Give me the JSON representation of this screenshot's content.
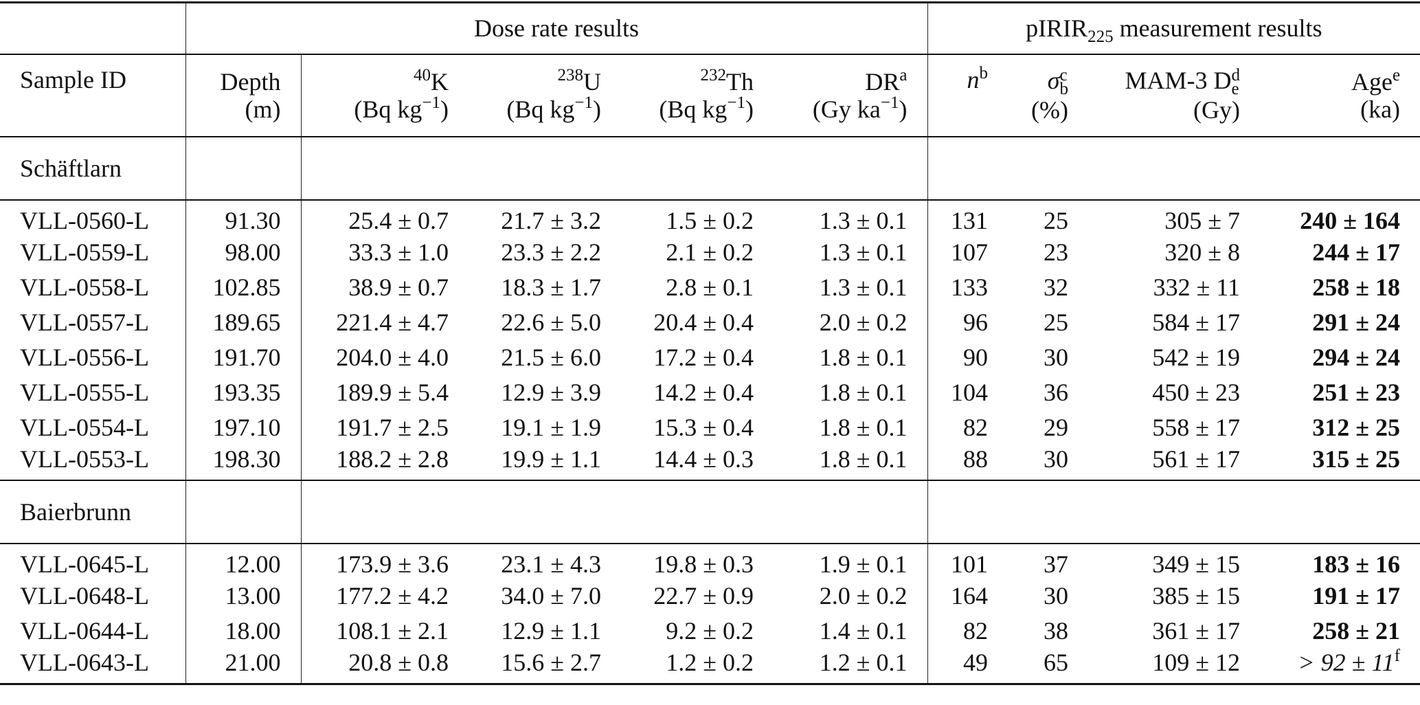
{
  "header": {
    "group_dose": "Dose rate results",
    "group_pirir_prefix": "pIRIR",
    "group_pirir_sub": "225",
    "group_pirir_suffix": " measurement results",
    "sample_id": "Sample ID",
    "depth": "Depth",
    "depth_unit": "(m)",
    "k_sup": "40",
    "k": "K",
    "k_unit": "(Bq kg",
    "k_unit_sup": "−1",
    "k_unit_end": ")",
    "u_sup": "238",
    "u": "U",
    "u_unit": "(Bq kg",
    "u_unit_sup": "−1",
    "u_unit_end": ")",
    "th_sup": "232",
    "th": "Th",
    "th_unit": "(Bq kg",
    "th_unit_sup": "−1",
    "th_unit_end": ")",
    "dr": "DR",
    "dr_sup": "a",
    "dr_unit": "(Gy ka",
    "dr_unit_sup": "−1",
    "dr_unit_end": ")",
    "n": "n",
    "n_sup": "b",
    "sigma": "σ",
    "sigma_sub": "b",
    "sigma_sup": "c",
    "sigma_unit": "(%)",
    "mam": "MAM-3 D",
    "mam_sub": "e",
    "mam_sup": "d",
    "mam_unit": "(Gy)",
    "age": "Age",
    "age_sup": "e",
    "age_unit": "(ka)"
  },
  "sites": [
    {
      "name": "Schäftlarn",
      "rows": [
        {
          "id": "VLL-0560-L",
          "depth": "91.30",
          "k": "25.4 ± 0.7",
          "u": "21.7 ± 3.2",
          "th": "1.5 ± 0.2",
          "dr": "1.3 ± 0.1",
          "n": "131",
          "sigma": "25",
          "de": "305 ± 7",
          "age": "240 ± 164"
        },
        {
          "id": "VLL-0559-L",
          "depth": "98.00",
          "k": "33.3 ± 1.0",
          "u": "23.3 ± 2.2",
          "th": "2.1 ± 0.2",
          "dr": "1.3 ± 0.1",
          "n": "107",
          "sigma": "23",
          "de": "320 ± 8",
          "age": "244 ± 17"
        },
        {
          "id": "VLL-0558-L",
          "depth": "102.85",
          "k": "38.9 ± 0.7",
          "u": "18.3 ± 1.7",
          "th": "2.8 ± 0.1",
          "dr": "1.3 ± 0.1",
          "n": "133",
          "sigma": "32",
          "de": "332 ± 11",
          "age": "258 ± 18"
        },
        {
          "id": "VLL-0557-L",
          "depth": "189.65",
          "k": "221.4 ± 4.7",
          "u": "22.6 ± 5.0",
          "th": "20.4 ± 0.4",
          "dr": "2.0 ± 0.2",
          "n": "96",
          "sigma": "25",
          "de": "584 ± 17",
          "age": "291 ± 24"
        },
        {
          "id": "VLL-0556-L",
          "depth": "191.70",
          "k": "204.0 ± 4.0",
          "u": "21.5 ± 6.0",
          "th": "17.2 ± 0.4",
          "dr": "1.8 ± 0.1",
          "n": "90",
          "sigma": "30",
          "de": "542 ± 19",
          "age": "294 ± 24"
        },
        {
          "id": "VLL-0555-L",
          "depth": "193.35",
          "k": "189.9 ± 5.4",
          "u": "12.9 ± 3.9",
          "th": "14.2 ± 0.4",
          "dr": "1.8 ± 0.1",
          "n": "104",
          "sigma": "36",
          "de": "450 ± 23",
          "age": "251 ± 23"
        },
        {
          "id": "VLL-0554-L",
          "depth": "197.10",
          "k": "191.7 ± 2.5",
          "u": "19.1 ± 1.9",
          "th": "15.3 ± 0.4",
          "dr": "1.8 ± 0.1",
          "n": "82",
          "sigma": "29",
          "de": "558 ± 17",
          "age": "312 ± 25"
        },
        {
          "id": "VLL-0553-L",
          "depth": "198.30",
          "k": "188.2 ± 2.8",
          "u": "19.9 ± 1.1",
          "th": "14.4 ± 0.3",
          "dr": "1.8 ± 0.1",
          "n": "88",
          "sigma": "30",
          "de": "561 ± 17",
          "age": "315 ± 25"
        }
      ]
    },
    {
      "name": "Baierbrunn",
      "rows": [
        {
          "id": "VLL-0645-L",
          "depth": "12.00",
          "k": "173.9 ± 3.6",
          "u": "23.1 ± 4.3",
          "th": "19.8 ± 0.3",
          "dr": "1.9 ± 0.1",
          "n": "101",
          "sigma": "37",
          "de": "349 ± 15",
          "age": "183 ± 16"
        },
        {
          "id": "VLL-0648-L",
          "depth": "13.00",
          "k": "177.2 ± 4.2",
          "u": "34.0 ± 7.0",
          "th": "22.7 ± 0.9",
          "dr": "2.0 ± 0.2",
          "n": "164",
          "sigma": "30",
          "de": "385 ± 15",
          "age": "191 ± 17"
        },
        {
          "id": "VLL-0644-L",
          "depth": "18.00",
          "k": "108.1 ± 2.1",
          "u": "12.9 ± 1.1",
          "th": "9.2 ± 0.2",
          "dr": "1.4 ± 0.1",
          "n": "82",
          "sigma": "38",
          "de": "361 ± 17",
          "age": "258 ± 21"
        },
        {
          "id": "VLL-0643-L",
          "depth": "21.00",
          "k": "20.8 ± 0.8",
          "u": "15.6 ± 2.7",
          "th": "1.2 ± 0.2",
          "dr": "1.2 ± 0.1",
          "n": "49",
          "sigma": "65",
          "de": "109 ± 12",
          "age": "> 92 ± 11",
          "age_sup": "f",
          "age_style": "italic"
        }
      ]
    }
  ]
}
